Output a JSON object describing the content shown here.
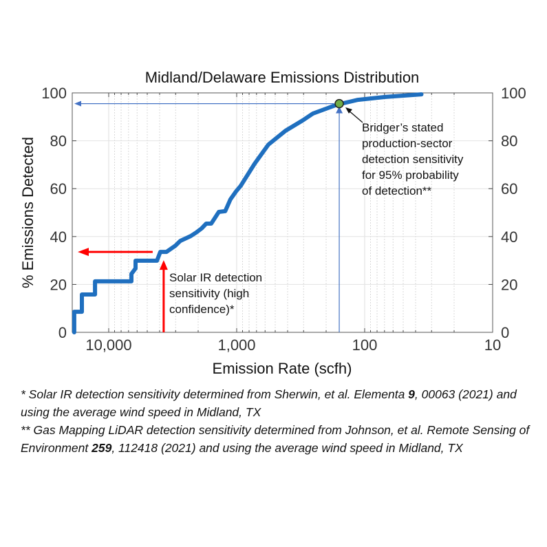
{
  "chart_data": {
    "type": "line",
    "title": "Midland/Delaware Emissions Distribution",
    "xlabel": "Emission Rate (scfh)",
    "ylabel": "% Emissions Detected",
    "x_scale": "log",
    "x_reversed": true,
    "xlim": [
      18600,
      10
    ],
    "ylim": [
      0,
      100
    ],
    "x_ticks": [
      10000,
      1000,
      100,
      10
    ],
    "x_tick_labels": [
      "10,000",
      "1,000",
      "100",
      "10"
    ],
    "y_ticks": [
      0,
      20,
      40,
      60,
      80,
      100
    ],
    "y_tick_labels": [
      "0",
      "20",
      "40",
      "60",
      "80",
      "100"
    ],
    "right_y_tick_labels": [
      "0",
      "20",
      "40",
      "60",
      "80",
      "100"
    ],
    "grid": true,
    "series": [
      {
        "color": "#1f6fbf",
        "points": [
          [
            18600,
            0
          ],
          [
            18600,
            8.6
          ],
          [
            16200,
            8.6
          ],
          [
            16200,
            15.8
          ],
          [
            12800,
            15.8
          ],
          [
            12800,
            21.3
          ],
          [
            6650,
            21.3
          ],
          [
            6650,
            24.4
          ],
          [
            6170,
            26.7
          ],
          [
            6170,
            29.9
          ],
          [
            4200,
            29.9
          ],
          [
            3950,
            33.6
          ],
          [
            3540,
            33.6
          ],
          [
            3010,
            36.2
          ],
          [
            2760,
            38.2
          ],
          [
            2290,
            40.2
          ],
          [
            2070,
            41.7
          ],
          [
            1880,
            43.4
          ],
          [
            1730,
            45.4
          ],
          [
            1580,
            45.4
          ],
          [
            1380,
            50.3
          ],
          [
            1230,
            50.6
          ],
          [
            1120,
            55.5
          ],
          [
            1010,
            58.9
          ],
          [
            929,
            61.2
          ],
          [
            725,
            70.4
          ],
          [
            566,
            78.4
          ],
          [
            415,
            84.2
          ],
          [
            305,
            88.5
          ],
          [
            253,
            91.4
          ],
          [
            164,
            95.1
          ],
          [
            113,
            97.1
          ],
          [
            69,
            98.3
          ],
          [
            36,
            99.4
          ]
        ]
      }
    ],
    "marker": {
      "x": 158,
      "y": 95.5,
      "color": "#70ad47"
    },
    "reference_lines": {
      "bridger_x": 158,
      "bridger_y": 95.5,
      "bridger_color": "#4472c4",
      "solar_x": 3720,
      "solar_y": 33.6,
      "solar_color": "#ff0000"
    },
    "annotations": {
      "bridger": [
        "Bridger’s stated",
        "production-sector",
        "detection sensitivity",
        "for 95% probability",
        "of detection**"
      ],
      "solar": [
        "Solar IR detection",
        "sensitivity (high",
        "confidence)*"
      ]
    }
  },
  "footnotes": {
    "note1_a": "* Solar IR detection sensitivity determined from Sherwin, et al. Elementa ",
    "note1_bold": "9",
    "note1_b": ", 00063 (2021) and using the average wind speed in Midland, TX",
    "note2_a": "** Gas Mapping LiDAR detection sensitivity determined from Johnson, et al. Remote Sensing of Environment ",
    "note2_bold": "259",
    "note2_b": ", 112418 (2021) and using the average wind speed in Midland, TX"
  }
}
